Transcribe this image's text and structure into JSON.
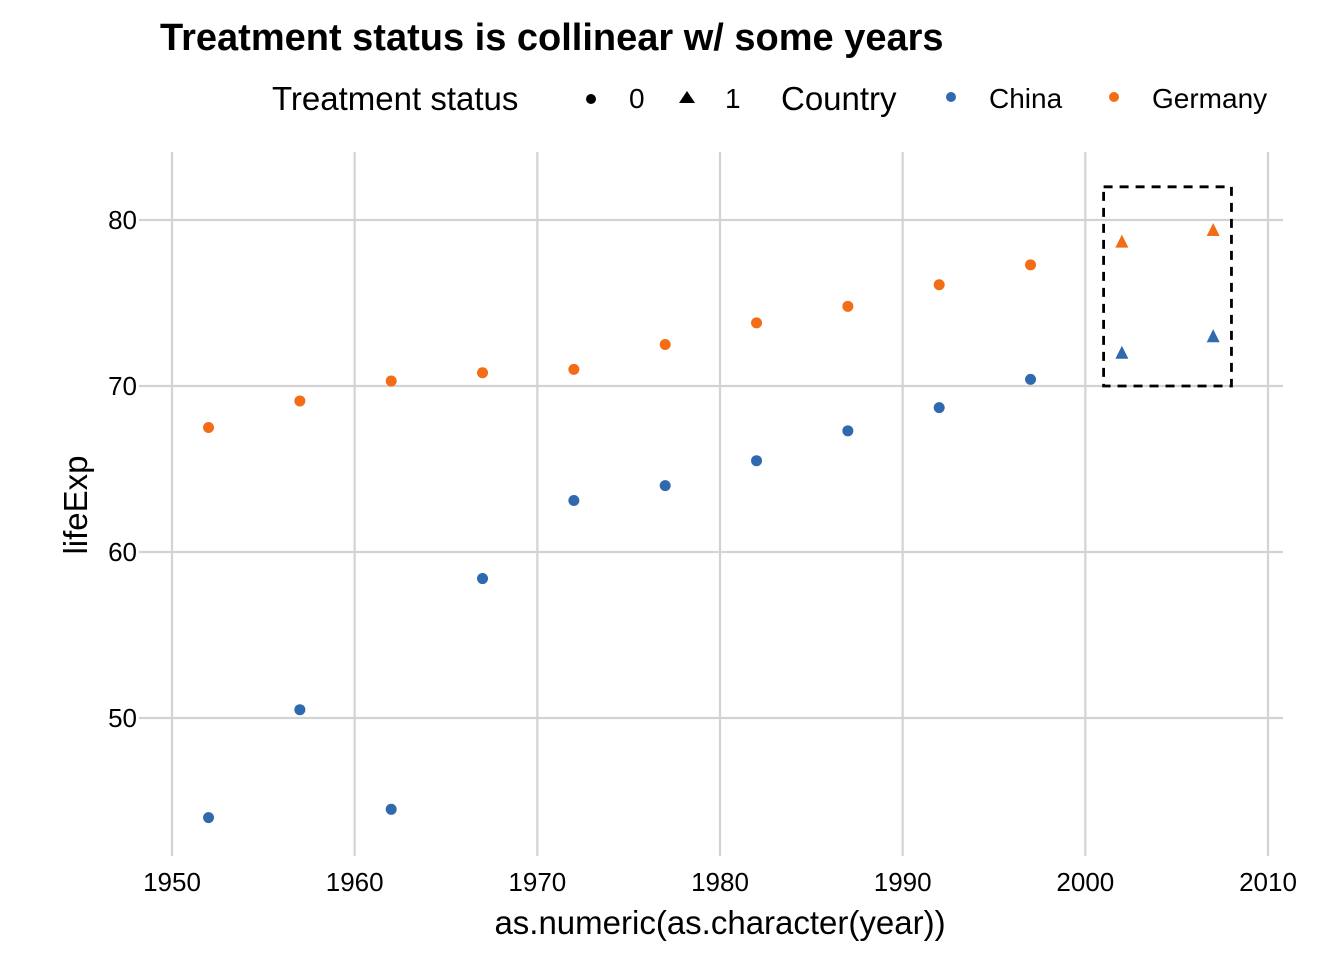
{
  "chart_data": {
    "type": "scatter",
    "title": "Treatment status is collinear w/ some years",
    "xlabel": "as.numeric(as.character(year))",
    "ylabel": "lifeExp",
    "xlim": [
      1949.5,
      2010
    ],
    "ylim": [
      42,
      84
    ],
    "x_ticks": [
      1950,
      1960,
      1970,
      1980,
      1990,
      2000,
      2010
    ],
    "y_ticks": [
      50,
      60,
      70,
      80
    ],
    "grid": true,
    "legend": {
      "placement": "top",
      "shape_title": "Treatment status",
      "shape_entries": [
        {
          "label": "0",
          "shape": "circle"
        },
        {
          "label": "1",
          "shape": "triangle"
        }
      ],
      "color_title": "Country",
      "color_entries": [
        {
          "label": "China",
          "color": "#2E6AAD"
        },
        {
          "label": "Germany",
          "color": "#F36C16"
        }
      ]
    },
    "series": [
      {
        "name": "China",
        "color": "#2E6AAD",
        "points": [
          {
            "x": 1952,
            "y": 44.0,
            "treatment": 0
          },
          {
            "x": 1957,
            "y": 50.5,
            "treatment": 0
          },
          {
            "x": 1962,
            "y": 44.5,
            "treatment": 0
          },
          {
            "x": 1967,
            "y": 58.4,
            "treatment": 0
          },
          {
            "x": 1972,
            "y": 63.1,
            "treatment": 0
          },
          {
            "x": 1977,
            "y": 64.0,
            "treatment": 0
          },
          {
            "x": 1982,
            "y": 65.5,
            "treatment": 0
          },
          {
            "x": 1987,
            "y": 67.3,
            "treatment": 0
          },
          {
            "x": 1992,
            "y": 68.7,
            "treatment": 0
          },
          {
            "x": 1997,
            "y": 70.4,
            "treatment": 0
          },
          {
            "x": 2002,
            "y": 72.0,
            "treatment": 1
          },
          {
            "x": 2007,
            "y": 73.0,
            "treatment": 1
          }
        ]
      },
      {
        "name": "Germany",
        "color": "#F36C16",
        "points": [
          {
            "x": 1952,
            "y": 67.5,
            "treatment": 0
          },
          {
            "x": 1957,
            "y": 69.1,
            "treatment": 0
          },
          {
            "x": 1962,
            "y": 70.3,
            "treatment": 0
          },
          {
            "x": 1967,
            "y": 70.8,
            "treatment": 0
          },
          {
            "x": 1972,
            "y": 71.0,
            "treatment": 0
          },
          {
            "x": 1977,
            "y": 72.5,
            "treatment": 0
          },
          {
            "x": 1982,
            "y": 73.8,
            "treatment": 0
          },
          {
            "x": 1987,
            "y": 74.8,
            "treatment": 0
          },
          {
            "x": 1992,
            "y": 76.1,
            "treatment": 0
          },
          {
            "x": 1997,
            "y": 77.3,
            "treatment": 0
          },
          {
            "x": 2002,
            "y": 78.7,
            "treatment": 1
          },
          {
            "x": 2007,
            "y": 79.4,
            "treatment": 1
          }
        ]
      }
    ],
    "annotation": {
      "type": "dashed-rectangle",
      "x_range": [
        2001,
        2008
      ],
      "y_range": [
        70,
        82
      ]
    }
  }
}
